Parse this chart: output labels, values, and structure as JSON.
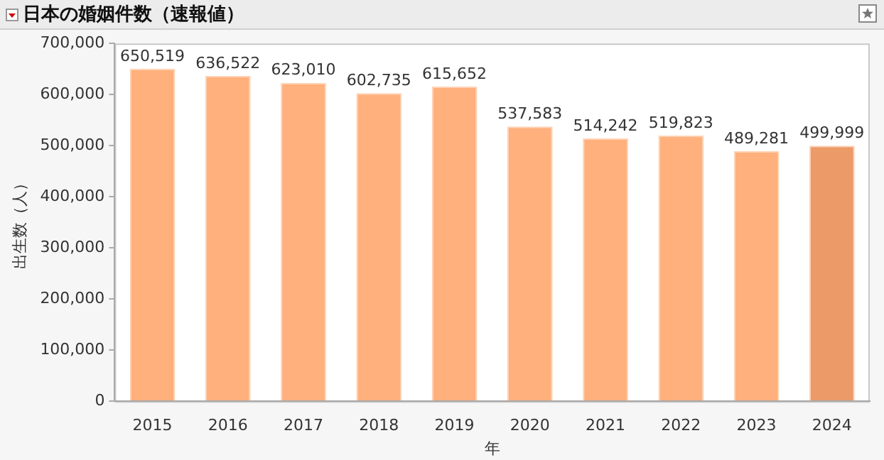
{
  "chart_data": {
    "type": "bar",
    "title": "日本の婚姻件数（速報値）",
    "xlabel": "年",
    "ylabel": "出生数（人）",
    "categories": [
      "2015",
      "2016",
      "2017",
      "2018",
      "2019",
      "2020",
      "2021",
      "2022",
      "2023",
      "2024"
    ],
    "values": [
      650519,
      636522,
      623010,
      602735,
      615652,
      537583,
      514242,
      519823,
      489281,
      499999
    ],
    "colors": [
      "#ffb07c",
      "#ffb07c",
      "#ffb07c",
      "#ffb07c",
      "#ffb07c",
      "#ffb07c",
      "#ffb07c",
      "#ffb07c",
      "#ffb07c",
      "#eb9a68"
    ],
    "value_labels": [
      "650,519",
      "636,522",
      "623,010",
      "602,735",
      "615,652",
      "537,583",
      "514,242",
      "519,823",
      "489,281",
      "499,999"
    ],
    "ylim": [
      0,
      700000
    ],
    "yticks": [
      0,
      {
        "value": 100000,
        "label": "100,000"
      },
      {
        "value": 200000,
        "label": "200,000"
      },
      {
        "value": 300000,
        "label": "300,000"
      },
      {
        "value": 400000,
        "label": "400,000"
      },
      {
        "value": 500000,
        "label": "500,000"
      },
      {
        "value": 600000,
        "label": "600,000"
      },
      {
        "value": 700000,
        "label": "700,000"
      }
    ],
    "grid": false,
    "legend": false
  }
}
